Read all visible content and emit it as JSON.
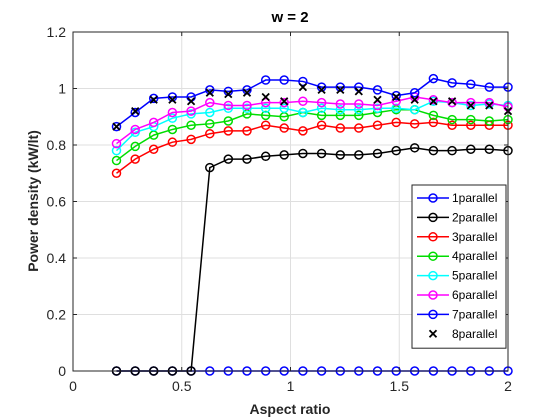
{
  "chart_data": {
    "type": "line",
    "title": "w = 2",
    "xlabel": "Aspect ratio",
    "ylabel": "Power density (kW/lt)",
    "xlim": [
      0,
      2
    ],
    "ylim": [
      0,
      1.2
    ],
    "xticks": [
      0,
      0.5,
      1,
      1.5,
      2
    ],
    "xtick_labels": [
      "0",
      "0.5",
      "1",
      "1.5",
      "2"
    ],
    "yticks": [
      0,
      0.2,
      0.4,
      0.6,
      0.8,
      1.0,
      1.2
    ],
    "ytick_labels": [
      "0",
      "0.2",
      "0.4",
      "0.6",
      "0.8",
      "1",
      "1.2"
    ],
    "grid": true,
    "legend_position": "right",
    "x": [
      0.2,
      0.286,
      0.371,
      0.457,
      0.543,
      0.629,
      0.714,
      0.8,
      0.886,
      0.971,
      1.057,
      1.143,
      1.229,
      1.314,
      1.4,
      1.486,
      1.571,
      1.657,
      1.743,
      1.829,
      1.914,
      2.0
    ],
    "series": [
      {
        "name": "1parallel",
        "color": "#0000ff",
        "marker": "circle",
        "values": [
          0,
          0,
          0,
          0,
          0,
          0,
          0,
          0,
          0,
          0,
          0,
          0,
          0,
          0,
          0,
          0,
          0,
          0,
          0,
          0,
          0,
          0
        ]
      },
      {
        "name": "2parallel",
        "color": "#000000",
        "marker": "circle",
        "values": [
          0,
          0,
          0,
          0,
          0,
          0.72,
          0.75,
          0.75,
          0.76,
          0.765,
          0.77,
          0.77,
          0.765,
          0.765,
          0.77,
          0.78,
          0.79,
          0.78,
          0.78,
          0.785,
          0.785,
          0.78
        ]
      },
      {
        "name": "3parallel",
        "color": "#ff0000",
        "marker": "circle",
        "values": [
          0.7,
          0.75,
          0.785,
          0.81,
          0.82,
          0.84,
          0.85,
          0.85,
          0.87,
          0.86,
          0.85,
          0.87,
          0.86,
          0.86,
          0.87,
          0.88,
          0.875,
          0.88,
          0.87,
          0.87,
          0.87,
          0.87
        ]
      },
      {
        "name": "4parallel",
        "color": "#00dd00",
        "marker": "circle",
        "values": [
          0.745,
          0.795,
          0.835,
          0.855,
          0.87,
          0.875,
          0.885,
          0.91,
          0.905,
          0.9,
          0.915,
          0.905,
          0.905,
          0.905,
          0.915,
          0.925,
          0.925,
          0.905,
          0.89,
          0.89,
          0.885,
          0.89
        ]
      },
      {
        "name": "5parallel",
        "color": "#00ffff",
        "marker": "circle",
        "values": [
          0.78,
          0.845,
          0.865,
          0.895,
          0.91,
          0.915,
          0.93,
          0.93,
          0.93,
          0.93,
          0.915,
          0.93,
          0.925,
          0.925,
          0.93,
          0.93,
          0.925,
          0.955,
          0.95,
          0.94,
          0.945,
          0.94
        ]
      },
      {
        "name": "6parallel",
        "color": "#ff00ff",
        "marker": "circle",
        "values": [
          0.805,
          0.855,
          0.88,
          0.915,
          0.92,
          0.95,
          0.94,
          0.94,
          0.95,
          0.95,
          0.955,
          0.95,
          0.945,
          0.945,
          0.94,
          0.955,
          0.97,
          0.96,
          0.95,
          0.95,
          0.95,
          0.935
        ]
      },
      {
        "name": "7parallel",
        "color": "#0000ff",
        "marker": "circle",
        "values": [
          0.865,
          0.915,
          0.965,
          0.97,
          0.97,
          0.995,
          0.99,
          0.995,
          1.03,
          1.03,
          1.025,
          1.005,
          1.005,
          1.005,
          0.995,
          0.975,
          0.985,
          1.035,
          1.02,
          1.015,
          1.005,
          1.005
        ]
      },
      {
        "name": "8parallel",
        "color": "#000000",
        "marker": "x",
        "values": [
          0.865,
          0.92,
          0.96,
          0.96,
          0.955,
          0.985,
          0.98,
          0.985,
          0.97,
          0.955,
          1.005,
          0.995,
          0.995,
          0.99,
          0.96,
          0.97,
          0.96,
          0.955,
          0.955,
          0.94,
          0.94,
          0.92
        ]
      }
    ]
  }
}
